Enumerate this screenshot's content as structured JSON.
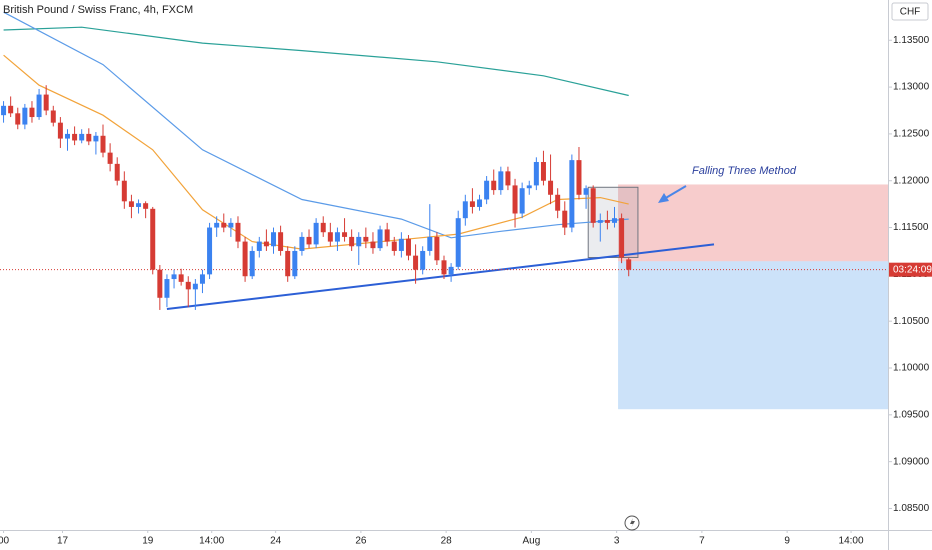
{
  "chart_data": {
    "type": "candlestick",
    "title": "British Pound / Swiss Franc, 4h, FXCM",
    "currency_label": "CHF",
    "countdown": "03:24:09",
    "annotation": "Falling Three Method",
    "up_color": "#3b82f0",
    "down_color": "#d63b34",
    "grid": false,
    "xlim": [
      -0.5,
      124.5
    ],
    "ylim": [
      1.0827,
      1.1393
    ],
    "xticks": [
      {
        "value": 0,
        "label": "00"
      },
      {
        "value": 8.3,
        "label": "17"
      },
      {
        "value": 20.3,
        "label": "19"
      },
      {
        "value": 29.3,
        "label": "14:00"
      },
      {
        "value": 38.3,
        "label": "24"
      },
      {
        "value": 50.3,
        "label": "26"
      },
      {
        "value": 62.3,
        "label": "28"
      },
      {
        "value": 74.3,
        "label": "Aug"
      },
      {
        "value": 86.3,
        "label": "3"
      },
      {
        "value": 98.3,
        "label": "7"
      },
      {
        "value": 110.3,
        "label": "9"
      },
      {
        "value": 119.3,
        "label": "14:00"
      }
    ],
    "yticks": [
      {
        "value": 1.135,
        "label": "1.13500"
      },
      {
        "value": 1.13,
        "label": "1.13000"
      },
      {
        "value": 1.125,
        "label": "1.12500"
      },
      {
        "value": 1.12,
        "label": "1.12000"
      },
      {
        "value": 1.115,
        "label": "1.11500"
      },
      {
        "value": 1.11,
        "label": "1.11000"
      },
      {
        "value": 1.105,
        "label": "1.10500"
      },
      {
        "value": 1.1,
        "label": "1.10000"
      },
      {
        "value": 1.095,
        "label": "1.09500"
      },
      {
        "value": 1.09,
        "label": "1.09000"
      },
      {
        "value": 1.085,
        "label": "1.08500"
      }
    ],
    "x": [
      0,
      1,
      2,
      3,
      4,
      5,
      6,
      7,
      8,
      9,
      10,
      11,
      12,
      13,
      14,
      15,
      16,
      17,
      18,
      19,
      20,
      21,
      22,
      23,
      24,
      25,
      26,
      27,
      28,
      29,
      30,
      31,
      32,
      33,
      34,
      35,
      36,
      37,
      38,
      39,
      40,
      41,
      42,
      43,
      44,
      45,
      46,
      47,
      48,
      49,
      50,
      51,
      52,
      53,
      54,
      55,
      56,
      57,
      58,
      59,
      60,
      61,
      62,
      63,
      64,
      65,
      66,
      67,
      68,
      69,
      70,
      71,
      72,
      73,
      74,
      75,
      76,
      77,
      78,
      79,
      80,
      81,
      82,
      83,
      84,
      85,
      86,
      87,
      88
    ],
    "open": [
      1.127,
      1.128,
      1.1272,
      1.126,
      1.1278,
      1.1268,
      1.1292,
      1.1275,
      1.1262,
      1.1245,
      1.125,
      1.1243,
      1.125,
      1.1242,
      1.1248,
      1.123,
      1.1218,
      1.12,
      1.1178,
      1.1172,
      1.1176,
      1.117,
      1.1105,
      1.1075,
      1.1095,
      1.11,
      1.1092,
      1.1084,
      1.109,
      1.11,
      1.115,
      1.1155,
      1.115,
      1.1155,
      1.1135,
      1.1098,
      1.1125,
      1.1135,
      1.113,
      1.1145,
      1.1125,
      1.1098,
      1.1125,
      1.114,
      1.1132,
      1.1155,
      1.1145,
      1.1135,
      1.1145,
      1.114,
      1.113,
      1.114,
      1.1135,
      1.1128,
      1.1148,
      1.1135,
      1.1125,
      1.1138,
      1.112,
      1.1105,
      1.1125,
      1.114,
      1.1115,
      1.11,
      1.1108,
      1.116,
      1.1178,
      1.1172,
      1.118,
      1.12,
      1.119,
      1.121,
      1.1195,
      1.1165,
      1.1192,
      1.1195,
      1.122,
      1.12,
      1.1185,
      1.1168,
      1.115,
      1.1222,
      1.1185,
      1.1192,
      1.1155,
      1.1158,
      1.1155,
      1.116,
      1.1116
    ],
    "high": [
      1.1285,
      1.129,
      1.1278,
      1.1282,
      1.1285,
      1.1298,
      1.1302,
      1.128,
      1.1268,
      1.1255,
      1.1258,
      1.1255,
      1.1256,
      1.1252,
      1.126,
      1.124,
      1.1225,
      1.121,
      1.1185,
      1.118,
      1.1178,
      1.1172,
      1.111,
      1.11,
      1.1105,
      1.1106,
      1.1098,
      1.1095,
      1.1105,
      1.1155,
      1.1162,
      1.1165,
      1.116,
      1.1162,
      1.114,
      1.113,
      1.114,
      1.1148,
      1.115,
      1.1152,
      1.113,
      1.113,
      1.1145,
      1.1148,
      1.116,
      1.1162,
      1.1155,
      1.115,
      1.116,
      1.1148,
      1.1145,
      1.115,
      1.1145,
      1.1152,
      1.1155,
      1.114,
      1.1145,
      1.1142,
      1.1132,
      1.113,
      1.1175,
      1.1145,
      1.112,
      1.1112,
      1.1168,
      1.1185,
      1.1192,
      1.1185,
      1.1205,
      1.1212,
      1.1215,
      1.1215,
      1.1202,
      1.1198,
      1.12,
      1.1225,
      1.1232,
      1.1228,
      1.1192,
      1.1178,
      1.1228,
      1.1236,
      1.1195,
      1.1195,
      1.1165,
      1.1168,
      1.1172,
      1.1165,
      1.1118
    ],
    "low": [
      1.1262,
      1.1268,
      1.1255,
      1.1255,
      1.1262,
      1.1265,
      1.127,
      1.1258,
      1.1235,
      1.1232,
      1.1238,
      1.124,
      1.1238,
      1.1228,
      1.1225,
      1.121,
      1.1195,
      1.117,
      1.116,
      1.1165,
      1.116,
      1.11,
      1.1062,
      1.1065,
      1.1085,
      1.1088,
      1.1065,
      1.1062,
      1.108,
      1.1095,
      1.114,
      1.1145,
      1.114,
      1.1128,
      1.1092,
      1.1095,
      1.1118,
      1.1125,
      1.1122,
      1.112,
      1.1092,
      1.1095,
      1.112,
      1.1128,
      1.1128,
      1.114,
      1.113,
      1.1125,
      1.1135,
      1.1125,
      1.111,
      1.1128,
      1.1122,
      1.1125,
      1.113,
      1.112,
      1.1118,
      1.1115,
      1.109,
      1.11,
      1.112,
      1.111,
      1.1095,
      1.1092,
      1.1105,
      1.1152,
      1.1165,
      1.1168,
      1.1175,
      1.1185,
      1.1185,
      1.119,
      1.115,
      1.116,
      1.1185,
      1.119,
      1.1195,
      1.1175,
      1.116,
      1.1142,
      1.1145,
      1.118,
      1.117,
      1.115,
      1.1135,
      1.1148,
      1.115,
      1.1112,
      1.1098
    ],
    "close": [
      1.128,
      1.1272,
      1.126,
      1.1278,
      1.1268,
      1.1292,
      1.1275,
      1.1262,
      1.1245,
      1.125,
      1.1243,
      1.125,
      1.1242,
      1.1248,
      1.123,
      1.1218,
      1.12,
      1.1178,
      1.1172,
      1.1176,
      1.117,
      1.1105,
      1.1075,
      1.1095,
      1.11,
      1.1092,
      1.1084,
      1.109,
      1.11,
      1.115,
      1.1155,
      1.115,
      1.1155,
      1.1135,
      1.1098,
      1.1125,
      1.1135,
      1.113,
      1.1145,
      1.1125,
      1.1098,
      1.1125,
      1.114,
      1.1132,
      1.1155,
      1.1145,
      1.1135,
      1.1145,
      1.114,
      1.113,
      1.114,
      1.1135,
      1.1128,
      1.1148,
      1.1135,
      1.1125,
      1.1138,
      1.112,
      1.1105,
      1.1125,
      1.114,
      1.1115,
      1.11,
      1.1108,
      1.116,
      1.1178,
      1.1172,
      1.118,
      1.12,
      1.119,
      1.121,
      1.1195,
      1.1165,
      1.1192,
      1.1195,
      1.122,
      1.12,
      1.1185,
      1.1168,
      1.115,
      1.1222,
      1.1185,
      1.1192,
      1.1155,
      1.1158,
      1.1155,
      1.116,
      1.1118,
      1.1105
    ],
    "lines": [
      {
        "color": "#2aa198",
        "x": [
          0,
          11,
          28,
          42,
          61,
          76,
          88
        ],
        "values": [
          1.1361,
          1.1364,
          1.1347,
          1.1339,
          1.1327,
          1.1312,
          1.1291
        ]
      },
      {
        "color": "#5b9be8",
        "x": [
          0,
          14,
          28,
          42,
          56,
          63,
          70,
          78,
          88
        ],
        "values": [
          1.138,
          1.1324,
          1.1233,
          1.118,
          1.1159,
          1.1139,
          1.1146,
          1.1153,
          1.1159
        ]
      },
      {
        "color": "#f2a33a",
        "x": [
          0,
          5,
          14,
          21,
          28,
          35,
          42,
          56,
          64,
          73,
          78,
          84,
          88
        ],
        "values": [
          1.1334,
          1.1302,
          1.127,
          1.1233,
          1.1169,
          1.1135,
          1.1127,
          1.1137,
          1.1143,
          1.1161,
          1.118,
          1.1182,
          1.1175
        ]
      }
    ],
    "trendline": {
      "color": "#2c5fd6",
      "x": [
        23,
        100
      ],
      "values": [
        1.1063,
        1.1132
      ]
    },
    "highlight": {
      "x": [
        82.3,
        89.3
      ],
      "values": [
        1.1118,
        1.1193
      ]
    },
    "position": {
      "x": [
        86.5,
        124.5
      ],
      "stop": 1.1196,
      "entry": 1.1114,
      "target": 1.0956
    }
  }
}
